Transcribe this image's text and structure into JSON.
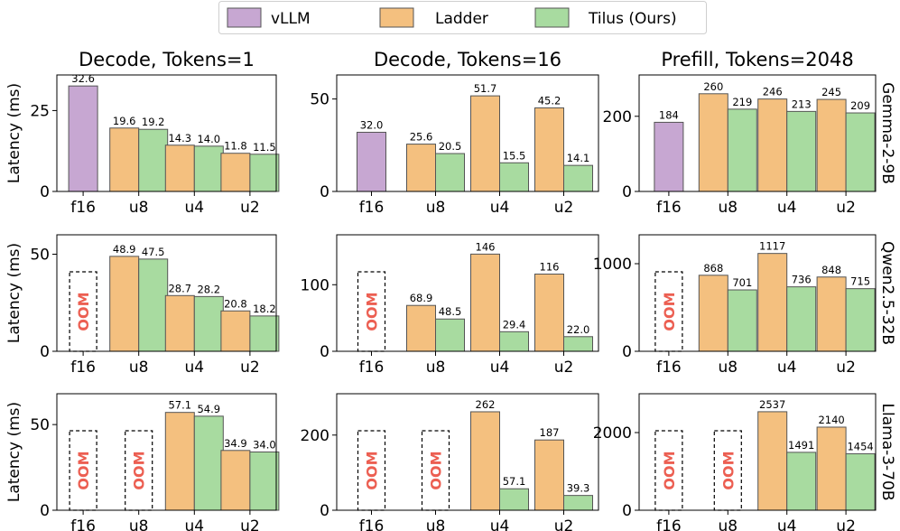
{
  "chart_data": {
    "type": "bar",
    "legend": [
      {
        "name": "vLLM",
        "color": "#c7a7d2"
      },
      {
        "name": "Ladder",
        "color": "#f4c07f"
      },
      {
        "name": "Tilus (Ours)",
        "color": "#a8dba0"
      }
    ],
    "column_titles": [
      "Decode, Tokens=1",
      "Decode, Tokens=16",
      "Prefill, Tokens=2048"
    ],
    "row_titles": [
      "Gemma-2-9B",
      "Qwen2.5-32B",
      "Llama-3-70B"
    ],
    "ylabel": "Latency (ms)",
    "categories": [
      "f16",
      "u8",
      "u4",
      "u2"
    ],
    "oom_label": "OOM",
    "panels": [
      {
        "row": 0,
        "col": 0,
        "ylim": [
          0,
          36
        ],
        "yticks": [
          0,
          25
        ],
        "groups": [
          {
            "category": "f16",
            "bars": [
              {
                "series": "vLLM",
                "value": 32.6,
                "label": "32.6"
              }
            ]
          },
          {
            "category": "u8",
            "bars": [
              {
                "series": "Ladder",
                "value": 19.6,
                "label": "19.6"
              },
              {
                "series": "Tilus (Ours)",
                "value": 19.2,
                "label": "19.2"
              }
            ]
          },
          {
            "category": "u4",
            "bars": [
              {
                "series": "Ladder",
                "value": 14.3,
                "label": "14.3"
              },
              {
                "series": "Tilus (Ours)",
                "value": 14.0,
                "label": "14.0"
              }
            ]
          },
          {
            "category": "u2",
            "bars": [
              {
                "series": "Ladder",
                "value": 11.8,
                "label": "11.8"
              },
              {
                "series": "Tilus (Ours)",
                "value": 11.5,
                "label": "11.5"
              }
            ]
          }
        ]
      },
      {
        "row": 0,
        "col": 1,
        "ylim": [
          0,
          63
        ],
        "yticks": [
          0,
          50
        ],
        "groups": [
          {
            "category": "f16",
            "bars": [
              {
                "series": "vLLM",
                "value": 32.0,
                "label": "32.0"
              }
            ]
          },
          {
            "category": "u8",
            "bars": [
              {
                "series": "Ladder",
                "value": 25.6,
                "label": "25.6"
              },
              {
                "series": "Tilus (Ours)",
                "value": 20.5,
                "label": "20.5"
              }
            ]
          },
          {
            "category": "u4",
            "bars": [
              {
                "series": "Ladder",
                "value": 51.7,
                "label": "51.7"
              },
              {
                "series": "Tilus (Ours)",
                "value": 15.5,
                "label": "15.5"
              }
            ]
          },
          {
            "category": "u2",
            "bars": [
              {
                "series": "Ladder",
                "value": 45.2,
                "label": "45.2"
              },
              {
                "series": "Tilus (Ours)",
                "value": 14.1,
                "label": "14.1"
              }
            ]
          }
        ]
      },
      {
        "row": 0,
        "col": 2,
        "ylim": [
          0,
          310
        ],
        "yticks": [
          0,
          200
        ],
        "groups": [
          {
            "category": "f16",
            "bars": [
              {
                "series": "vLLM",
                "value": 184,
                "label": "184"
              }
            ]
          },
          {
            "category": "u8",
            "bars": [
              {
                "series": "Ladder",
                "value": 260,
                "label": "260"
              },
              {
                "series": "Tilus (Ours)",
                "value": 219,
                "label": "219"
              }
            ]
          },
          {
            "category": "u4",
            "bars": [
              {
                "series": "Ladder",
                "value": 246,
                "label": "246"
              },
              {
                "series": "Tilus (Ours)",
                "value": 213,
                "label": "213"
              }
            ]
          },
          {
            "category": "u2",
            "bars": [
              {
                "series": "Ladder",
                "value": 245,
                "label": "245"
              },
              {
                "series": "Tilus (Ours)",
                "value": 209,
                "label": "209"
              }
            ]
          }
        ]
      },
      {
        "row": 1,
        "col": 0,
        "ylim": [
          0,
          60
        ],
        "yticks": [
          0,
          50
        ],
        "groups": [
          {
            "category": "f16",
            "oom": true,
            "bars": []
          },
          {
            "category": "u8",
            "bars": [
              {
                "series": "Ladder",
                "value": 48.9,
                "label": "48.9"
              },
              {
                "series": "Tilus (Ours)",
                "value": 47.5,
                "label": "47.5"
              }
            ]
          },
          {
            "category": "u4",
            "bars": [
              {
                "series": "Ladder",
                "value": 28.7,
                "label": "28.7"
              },
              {
                "series": "Tilus (Ours)",
                "value": 28.2,
                "label": "28.2"
              }
            ]
          },
          {
            "category": "u2",
            "bars": [
              {
                "series": "Ladder",
                "value": 20.8,
                "label": "20.8"
              },
              {
                "series": "Tilus (Ours)",
                "value": 18.2,
                "label": "18.2"
              }
            ]
          }
        ]
      },
      {
        "row": 1,
        "col": 1,
        "ylim": [
          0,
          175
        ],
        "yticks": [
          0,
          100
        ],
        "groups": [
          {
            "category": "f16",
            "oom": true,
            "bars": []
          },
          {
            "category": "u8",
            "bars": [
              {
                "series": "Ladder",
                "value": 68.9,
                "label": "68.9"
              },
              {
                "series": "Tilus (Ours)",
                "value": 48.5,
                "label": "48.5"
              }
            ]
          },
          {
            "category": "u4",
            "bars": [
              {
                "series": "Ladder",
                "value": 146,
                "label": "146"
              },
              {
                "series": "Tilus (Ours)",
                "value": 29.4,
                "label": "29.4"
              }
            ]
          },
          {
            "category": "u2",
            "bars": [
              {
                "series": "Ladder",
                "value": 116,
                "label": "116"
              },
              {
                "series": "Tilus (Ours)",
                "value": 22.0,
                "label": "22.0"
              }
            ]
          }
        ]
      },
      {
        "row": 1,
        "col": 2,
        "ylim": [
          0,
          1330
        ],
        "yticks": [
          0,
          1000
        ],
        "groups": [
          {
            "category": "f16",
            "oom": true,
            "bars": []
          },
          {
            "category": "u8",
            "bars": [
              {
                "series": "Ladder",
                "value": 868,
                "label": "868"
              },
              {
                "series": "Tilus (Ours)",
                "value": 701,
                "label": "701"
              }
            ]
          },
          {
            "category": "u4",
            "bars": [
              {
                "series": "Ladder",
                "value": 1117,
                "label": "1117"
              },
              {
                "series": "Tilus (Ours)",
                "value": 736,
                "label": "736"
              }
            ]
          },
          {
            "category": "u2",
            "bars": [
              {
                "series": "Ladder",
                "value": 848,
                "label": "848"
              },
              {
                "series": "Tilus (Ours)",
                "value": 715,
                "label": "715"
              }
            ]
          }
        ]
      },
      {
        "row": 2,
        "col": 0,
        "ylim": [
          0,
          68
        ],
        "yticks": [
          0,
          50
        ],
        "groups": [
          {
            "category": "f16",
            "oom": true,
            "bars": []
          },
          {
            "category": "u8",
            "oom": true,
            "bars": []
          },
          {
            "category": "u4",
            "bars": [
              {
                "series": "Ladder",
                "value": 57.1,
                "label": "57.1"
              },
              {
                "series": "Tilus (Ours)",
                "value": 54.9,
                "label": "54.9"
              }
            ]
          },
          {
            "category": "u2",
            "bars": [
              {
                "series": "Ladder",
                "value": 34.9,
                "label": "34.9"
              },
              {
                "series": "Tilus (Ours)",
                "value": 34.0,
                "label": "34.0"
              }
            ]
          }
        ]
      },
      {
        "row": 2,
        "col": 1,
        "ylim": [
          0,
          310
        ],
        "yticks": [
          0,
          200
        ],
        "groups": [
          {
            "category": "f16",
            "oom": true,
            "bars": []
          },
          {
            "category": "u8",
            "oom": true,
            "bars": []
          },
          {
            "category": "u4",
            "bars": [
              {
                "series": "Ladder",
                "value": 262,
                "label": "262"
              },
              {
                "series": "Tilus (Ours)",
                "value": 57.1,
                "label": "57.1"
              }
            ]
          },
          {
            "category": "u2",
            "bars": [
              {
                "series": "Ladder",
                "value": 187,
                "label": "187"
              },
              {
                "series": "Tilus (Ours)",
                "value": 39.3,
                "label": "39.3"
              }
            ]
          }
        ]
      },
      {
        "row": 2,
        "col": 2,
        "ylim": [
          0,
          3000
        ],
        "yticks": [
          0,
          2000
        ],
        "groups": [
          {
            "category": "f16",
            "oom": true,
            "bars": []
          },
          {
            "category": "u8",
            "oom": true,
            "bars": []
          },
          {
            "category": "u4",
            "bars": [
              {
                "series": "Ladder",
                "value": 2537,
                "label": "2537"
              },
              {
                "series": "Tilus (Ours)",
                "value": 1491,
                "label": "1491"
              }
            ]
          },
          {
            "category": "u2",
            "bars": [
              {
                "series": "Ladder",
                "value": 2140,
                "label": "2140"
              },
              {
                "series": "Tilus (Ours)",
                "value": 1454,
                "label": "1454"
              }
            ]
          }
        ]
      }
    ]
  }
}
